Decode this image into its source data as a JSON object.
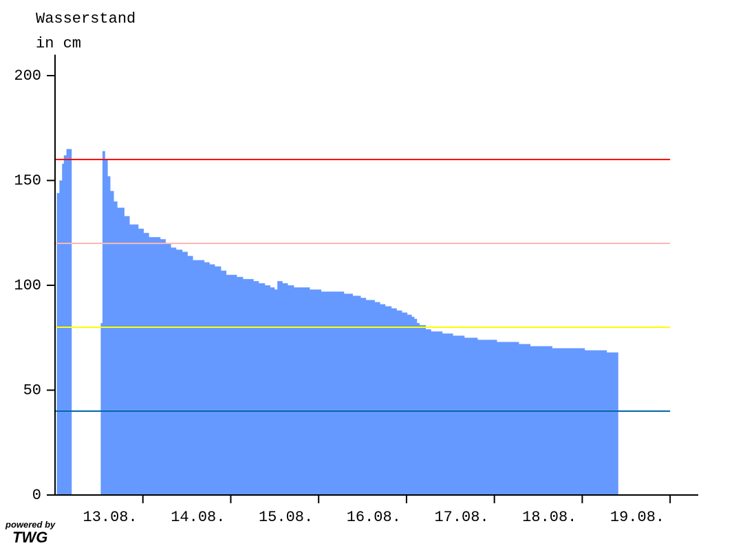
{
  "chart_data": {
    "type": "step-area",
    "ylabel": [
      "Wasserstand",
      "in cm"
    ],
    "watermark": [
      "powered by",
      "TWG"
    ],
    "x": [
      12.02,
      12.05,
      12.08,
      12.1,
      12.13,
      12.19,
      12.35,
      12.52,
      12.54,
      12.57,
      12.6,
      12.63,
      12.67,
      12.71,
      12.79,
      12.85,
      12.95,
      13.01,
      13.07,
      13.2,
      13.26,
      13.32,
      13.38,
      13.45,
      13.51,
      13.57,
      13.7,
      13.76,
      13.82,
      13.89,
      13.95,
      14.07,
      14.14,
      14.26,
      14.32,
      14.39,
      14.45,
      14.5,
      14.53,
      14.59,
      14.65,
      14.72,
      14.9,
      15.03,
      15.29,
      15.39,
      15.48,
      15.54,
      15.64,
      15.7,
      15.76,
      15.83,
      15.89,
      15.95,
      16.01,
      16.06,
      16.09,
      16.12,
      16.15,
      16.22,
      16.28,
      16.41,
      16.53,
      16.66,
      16.81,
      17.03,
      17.28,
      17.41,
      17.66,
      18.03,
      18.28,
      18.41
    ],
    "series": [
      {
        "color": "#6699ff",
        "values": [
          144,
          150,
          158,
          162,
          165,
          165,
          null,
          82,
          164,
          160,
          152,
          145,
          140,
          137,
          133,
          129,
          127,
          125,
          123,
          122,
          120,
          118,
          117,
          116,
          114,
          112,
          111,
          110,
          109,
          107,
          105,
          104,
          103,
          102,
          101,
          100,
          99,
          98,
          102,
          101,
          100,
          99,
          98,
          97,
          96,
          95,
          94,
          93,
          92,
          91,
          90,
          89,
          88,
          87,
          86,
          85,
          84,
          82,
          81,
          79,
          78,
          77,
          76,
          75,
          74,
          73,
          72,
          71,
          70,
          69,
          68,
          68
        ]
      }
    ],
    "thresholds": [
      {
        "value": 160,
        "color": "#ff0000"
      },
      {
        "value": 120,
        "color": "#ffb6b6"
      },
      {
        "value": 80,
        "color": "#ffff00"
      },
      {
        "value": 40,
        "color": "#0066aa"
      }
    ],
    "xlim": [
      12,
      19.32
    ],
    "xticks": [
      {
        "value": 13,
        "label": "13.08."
      },
      {
        "value": 14,
        "label": "14.08."
      },
      {
        "value": 15,
        "label": "15.08."
      },
      {
        "value": 16,
        "label": "16.08."
      },
      {
        "value": 17,
        "label": "17.08."
      },
      {
        "value": 18,
        "label": "18.08."
      },
      {
        "value": 19,
        "label": "19.08."
      }
    ],
    "ylim": [
      0,
      210
    ],
    "yticks": [
      0,
      50,
      100,
      150,
      200
    ]
  }
}
